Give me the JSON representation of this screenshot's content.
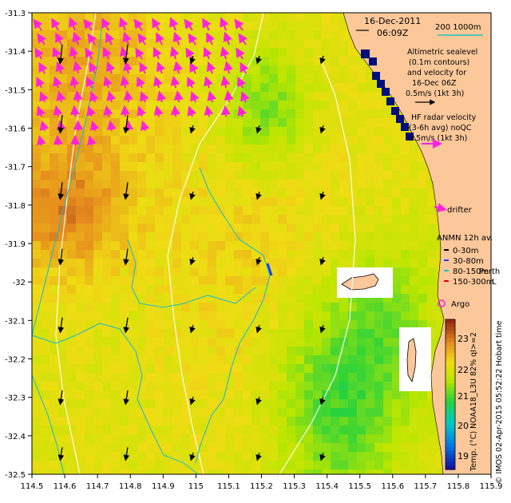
{
  "header": {
    "date": "16-Dec-2011",
    "time": "06:09Z"
  },
  "scale": {
    "label": "200  1000m",
    "line_color": "#20c0c0"
  },
  "legend": {
    "sealevel_lines": [
      "Altimetric sealevel",
      "(0.1m contours)",
      "and velocity for",
      "16-Dec 06Z",
      "0.5m/s (1kt 3h)"
    ],
    "hf_lines": [
      "HF radar velocity",
      "(3-6h avg) noQC",
      "0.5m/s (1kt 3h)"
    ],
    "drifter": "drifter",
    "anmn_title": "ANMN 12h av.",
    "anmn_items": [
      {
        "label": "0-30m",
        "color": "#000000"
      },
      {
        "label": "30-80m",
        "color": "#1f3fff"
      },
      {
        "label": "80-150m",
        "color": "#20c0c0"
      },
      {
        "label": "150-300m",
        "color": "#e00000"
      }
    ],
    "argo": "Argo",
    "place": "Perth",
    "place_suffix": "L"
  },
  "colorbar": {
    "ticks": [
      "23",
      "22",
      "21",
      "20",
      "19"
    ],
    "title": "Temp. (°C) NOAA18_L3U 82% qI>=2",
    "range": [
      18.5,
      23.5
    ]
  },
  "credit": "© IMOS 02-Apr-2015 05:52:22 Hobart time",
  "axes": {
    "lon_ticks": [
      "114.5",
      "114.6",
      "114.7",
      "114.8",
      "114.9",
      "115",
      "115.1",
      "115.2",
      "115.3",
      "115.4",
      "115.5",
      "115.6",
      "115.7",
      "115.8",
      "115.9"
    ],
    "lat_ticks": [
      "-31.3",
      "-31.4",
      "-31.5",
      "-31.6",
      "-31.7",
      "-31.8",
      "-31.9",
      "-32",
      "-32.1",
      "-32.2",
      "-32.3",
      "-32.4",
      "-32.5"
    ],
    "lon_range": [
      114.5,
      115.9
    ],
    "lat_range": [
      -32.5,
      -31.3
    ]
  },
  "colors": {
    "land": "#fcc89a",
    "no_data": "#ffffff",
    "hf_arrows": "#ff22dd",
    "alt_arrows": "#000000",
    "contour_white": "#ffffff",
    "isobath": "#20c0c0",
    "deep_pixels": "#00107a"
  }
}
